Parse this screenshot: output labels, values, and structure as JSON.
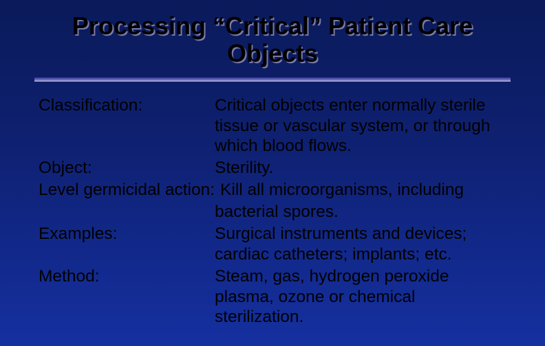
{
  "title": "Processing “Critical” Patient Care Objects",
  "rows": {
    "classification": {
      "label": "Classification:",
      "value": "Critical objects enter normally sterile tissue or vascular system, or through which blood flows."
    },
    "object": {
      "label": "Object:",
      "value": "Sterility."
    },
    "level": {
      "label": "Level germicidal action:",
      "value_inline": "Kill all microorganisms, including",
      "value_cont": "bacterial spores."
    },
    "examples": {
      "label": "Examples:",
      "value": "Surgical instruments and devices; cardiac catheters; implants; etc."
    },
    "method": {
      "label": "Method:",
      "value": "Steam, gas, hydrogen peroxide plasma, ozone or chemical sterilization."
    }
  },
  "styling": {
    "slide_width": 792,
    "slide_height": 504,
    "background_gradient": [
      "#0a1a5a",
      "#0e2070",
      "#1530a0"
    ],
    "title_color": "#000000",
    "title_shadow": "#7a7aa8",
    "title_fontsize": 36,
    "body_fontsize": 24.5,
    "divider_colors": [
      "#4a4aa5",
      "#6a6ab5",
      "#a0a0d0"
    ],
    "label_col_width": 256,
    "font_family": "Arial"
  }
}
